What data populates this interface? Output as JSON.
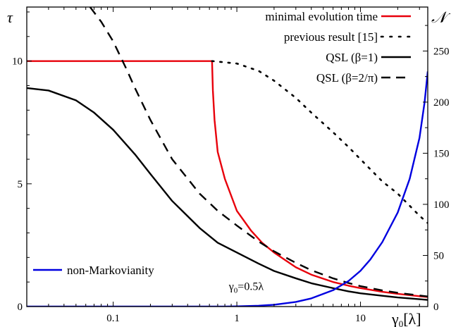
{
  "chart_data": {
    "type": "line",
    "x_scale": "log",
    "xlim": [
      0.02,
      35
    ],
    "ylim_left": [
      0,
      12.2
    ],
    "ylim_right": [
      0,
      293
    ],
    "xlabel_html": [
      "γ",
      "0",
      "[λ]"
    ],
    "ylabel_left": "τ",
    "ylabel_right": "𝒩",
    "x_ticks": [
      {
        "value": 0.1,
        "label": "0.1"
      },
      {
        "value": 1,
        "label": "1"
      },
      {
        "value": 10,
        "label": "10"
      }
    ],
    "y_left_ticks": [
      {
        "value": 0,
        "label": "0"
      },
      {
        "value": 5,
        "label": "5"
      },
      {
        "value": 10,
        "label": "10"
      }
    ],
    "y_right_ticks": [
      {
        "value": 0,
        "label": "0"
      },
      {
        "value": 50,
        "label": "50"
      },
      {
        "value": 100,
        "label": "100"
      },
      {
        "value": 150,
        "label": "150"
      },
      {
        "value": 200,
        "label": "200"
      },
      {
        "value": 250,
        "label": "250"
      }
    ],
    "annotation": {
      "parts": [
        "γ",
        "0",
        "=0.5λ"
      ],
      "x": 1.4,
      "y": 0.65
    },
    "legend_position": "top-right",
    "series": [
      {
        "name": "minimal evolution time",
        "color": "#e8000b",
        "dash": "solid",
        "axis": "left",
        "points": [
          [
            0.02,
            10.0
          ],
          [
            0.3,
            10.0
          ],
          [
            0.63,
            10.0
          ],
          [
            0.64,
            8.8
          ],
          [
            0.66,
            7.6
          ],
          [
            0.7,
            6.3
          ],
          [
            0.8,
            5.2
          ],
          [
            1.0,
            3.9
          ],
          [
            1.3,
            3.1
          ],
          [
            1.6,
            2.6
          ],
          [
            2.0,
            2.2
          ],
          [
            3.0,
            1.6
          ],
          [
            4.0,
            1.3
          ],
          [
            6.0,
            1.0
          ],
          [
            8.0,
            0.85
          ],
          [
            10.0,
            0.75
          ],
          [
            15.0,
            0.6
          ],
          [
            20.0,
            0.52
          ],
          [
            30.0,
            0.42
          ],
          [
            35.0,
            0.39
          ]
        ]
      },
      {
        "name": "previous result [15]",
        "color": "#000000",
        "dash": "dotted",
        "axis": "left",
        "points": [
          [
            0.63,
            10.0
          ],
          [
            1.0,
            9.9
          ],
          [
            1.5,
            9.6
          ],
          [
            2.0,
            9.2
          ],
          [
            3.0,
            8.5
          ],
          [
            4.0,
            7.9
          ],
          [
            6.0,
            7.1
          ],
          [
            8.0,
            6.5
          ],
          [
            10.0,
            6.0
          ],
          [
            15.0,
            5.1
          ],
          [
            20.0,
            4.6
          ],
          [
            30.0,
            3.7
          ],
          [
            35.0,
            3.4
          ]
        ]
      },
      {
        "name": "QSL (β=1)",
        "color": "#000000",
        "dash": "solid",
        "axis": "left",
        "points": [
          [
            0.02,
            8.9
          ],
          [
            0.03,
            8.8
          ],
          [
            0.05,
            8.4
          ],
          [
            0.07,
            7.9
          ],
          [
            0.1,
            7.2
          ],
          [
            0.15,
            6.2
          ],
          [
            0.2,
            5.4
          ],
          [
            0.3,
            4.3
          ],
          [
            0.5,
            3.2
          ],
          [
            0.7,
            2.6
          ],
          [
            1.0,
            2.2
          ],
          [
            1.5,
            1.75
          ],
          [
            2.0,
            1.45
          ],
          [
            3.0,
            1.15
          ],
          [
            4.0,
            0.95
          ],
          [
            6.0,
            0.75
          ],
          [
            8.0,
            0.62
          ],
          [
            10.0,
            0.54
          ],
          [
            15.0,
            0.44
          ],
          [
            20.0,
            0.37
          ],
          [
            30.0,
            0.3
          ],
          [
            35.0,
            0.27
          ]
        ]
      },
      {
        "name": "QSL (β=2/π)",
        "color": "#000000",
        "dash": "dashed",
        "axis": "left",
        "points": [
          [
            0.065,
            12.2
          ],
          [
            0.08,
            11.6
          ],
          [
            0.1,
            10.8
          ],
          [
            0.13,
            9.6
          ],
          [
            0.15,
            8.9
          ],
          [
            0.2,
            7.6
          ],
          [
            0.3,
            6.0
          ],
          [
            0.5,
            4.6
          ],
          [
            0.7,
            3.9
          ],
          [
            1.0,
            3.3
          ],
          [
            1.5,
            2.65
          ],
          [
            2.0,
            2.25
          ],
          [
            3.0,
            1.78
          ],
          [
            4.0,
            1.48
          ],
          [
            6.0,
            1.15
          ],
          [
            8.0,
            0.96
          ],
          [
            10.0,
            0.83
          ],
          [
            15.0,
            0.66
          ],
          [
            20.0,
            0.56
          ],
          [
            30.0,
            0.45
          ],
          [
            35.0,
            0.41
          ]
        ]
      },
      {
        "name": "non-Markovianity",
        "color": "#0000e0",
        "dash": "solid",
        "axis": "right",
        "points": [
          [
            0.02,
            0.0
          ],
          [
            0.5,
            0.0
          ],
          [
            0.8,
            0.05
          ],
          [
            1.0,
            0.2
          ],
          [
            1.5,
            0.8
          ],
          [
            2.0,
            1.8
          ],
          [
            3.0,
            4.5
          ],
          [
            4.0,
            8.0
          ],
          [
            6.0,
            16.0
          ],
          [
            8.0,
            25.0
          ],
          [
            10.0,
            35.0
          ],
          [
            12.0,
            46.0
          ],
          [
            15.0,
            63.0
          ],
          [
            20.0,
            92.0
          ],
          [
            25.0,
            125.0
          ],
          [
            30.0,
            165.0
          ],
          [
            33.0,
            200.0
          ],
          [
            35.0,
            230.0
          ]
        ]
      }
    ]
  }
}
